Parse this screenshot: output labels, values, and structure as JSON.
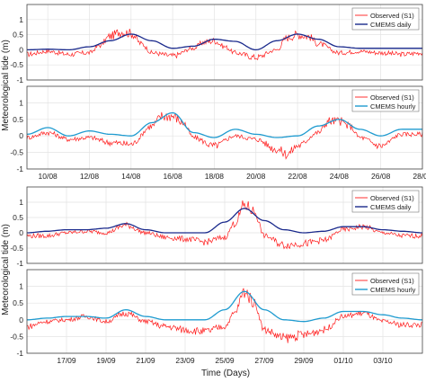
{
  "figure": {
    "ylabel_top": "Meteorological tide (m)",
    "ylabel_bottom": "Meteorological tide (m)",
    "xlabel_bottom": "Time (Days)"
  },
  "colors": {
    "observed": "#ff1a1a",
    "daily": "#1a2a8c",
    "hourly": "#1f9bd0",
    "axis": "#444444"
  },
  "chart_data": [
    {
      "type": "line",
      "panel": "A",
      "ylim": [
        -1,
        1.5
      ],
      "yticks": [
        -1,
        -0.5,
        0,
        0.5,
        1
      ],
      "ytick_labels": [
        "-1",
        "-0.5",
        "0",
        "0.5",
        "1"
      ],
      "x_range_days": [
        "2021-08-09",
        "2021-08-28"
      ],
      "xticks": [],
      "xtick_labels": [],
      "grid": true,
      "legend_position": "top-right",
      "series": [
        {
          "name": "Observed (S1)",
          "style": "observed",
          "x": [
            "08-09",
            "08-10",
            "08-11",
            "08-12",
            "08-12.5",
            "08-13",
            "08-13.5",
            "08-14",
            "08-14.5",
            "08-15",
            "08-16",
            "08-17",
            "08-17.5",
            "08-18",
            "08-18.5",
            "08-19",
            "08-20",
            "08-21",
            "08-21.5",
            "08-22",
            "08-22.5",
            "08-23",
            "08-24",
            "08-25",
            "08-26",
            "08-27",
            "08-28"
          ],
          "y": [
            -0.15,
            -0.05,
            -0.15,
            -0.1,
            0.15,
            0.45,
            0.6,
            0.55,
            0.2,
            -0.1,
            -0.2,
            0.05,
            0.25,
            0.3,
            0.1,
            -0.1,
            -0.25,
            0.0,
            0.4,
            0.5,
            0.45,
            0.2,
            -0.1,
            -0.05,
            -0.1,
            -0.15,
            -0.1
          ]
        },
        {
          "name": "CMEMS daily",
          "style": "daily",
          "x": [
            "08-09",
            "08-10",
            "08-11",
            "08-12",
            "08-13",
            "08-14",
            "08-15",
            "08-16",
            "08-17",
            "08-18",
            "08-19",
            "08-20",
            "08-21",
            "08-22",
            "08-23",
            "08-24",
            "08-25",
            "08-26",
            "08-27",
            "08-28"
          ],
          "y": [
            0.0,
            0.02,
            0.0,
            0.1,
            0.3,
            0.52,
            0.3,
            0.05,
            0.12,
            0.35,
            0.28,
            0.0,
            0.3,
            0.52,
            0.35,
            0.1,
            0.05,
            0.05,
            0.05,
            0.05
          ]
        }
      ]
    },
    {
      "type": "line",
      "panel": "B",
      "ylim": [
        -1,
        1.5
      ],
      "yticks": [
        -1,
        -0.5,
        0,
        0.5,
        1
      ],
      "ytick_labels": [
        "-1",
        "-0.5",
        "0",
        "0.5",
        "1"
      ],
      "x_range_days": [
        "2021-08-09",
        "2021-08-28"
      ],
      "xticks": [
        "2021-08-10",
        "2021-08-12",
        "2021-08-14",
        "2021-08-16",
        "2021-08-18",
        "2021-08-20",
        "2021-08-22",
        "2021-08-24",
        "2021-08-26",
        "2021-08-28"
      ],
      "xtick_labels": [
        "10/08",
        "12/08",
        "14/08",
        "16/08",
        "18/08",
        "20/08",
        "22/08",
        "24/08",
        "26/08",
        "28/08"
      ],
      "grid": true,
      "legend_position": "top-right",
      "series": [
        {
          "name": "Observed (S1)",
          "style": "observed",
          "x": [
            "08-09",
            "08-10",
            "08-11",
            "08-12",
            "08-13",
            "08-14",
            "08-15",
            "08-15.5",
            "08-16",
            "08-16.5",
            "08-17",
            "08-18",
            "08-19",
            "08-20",
            "08-21",
            "08-21.5",
            "08-22",
            "08-23",
            "08-23.5",
            "08-24",
            "08-24.5",
            "08-25",
            "08-26",
            "08-27",
            "08-28"
          ],
          "y": [
            -0.05,
            0.1,
            -0.1,
            -0.05,
            -0.2,
            -0.25,
            0.3,
            0.6,
            0.6,
            0.4,
            -0.05,
            -0.3,
            0.0,
            -0.1,
            -0.4,
            -0.55,
            -0.3,
            0.1,
            0.45,
            0.45,
            0.3,
            -0.05,
            -0.3,
            0.05,
            0.05
          ]
        },
        {
          "name": "CMEMS hourly",
          "style": "hourly",
          "x": [
            "08-09",
            "08-10",
            "08-11",
            "08-12",
            "08-13",
            "08-14",
            "08-15",
            "08-16",
            "08-17",
            "08-18",
            "08-19",
            "08-20",
            "08-21",
            "08-22",
            "08-23",
            "08-24",
            "08-25",
            "08-26",
            "08-27",
            "08-28"
          ],
          "y": [
            0.05,
            0.25,
            0.0,
            0.15,
            0.05,
            0.0,
            0.4,
            0.7,
            0.1,
            -0.05,
            0.2,
            0.05,
            -0.05,
            0.0,
            0.3,
            0.5,
            0.2,
            0.0,
            0.2,
            0.2
          ]
        }
      ]
    },
    {
      "type": "line",
      "panel": "C",
      "ylim": [
        -1,
        1.5
      ],
      "yticks": [
        -1,
        -0.5,
        0,
        0.5,
        1
      ],
      "ytick_labels": [
        "-1",
        "-0.5",
        "0",
        "0.5",
        "1"
      ],
      "x_range_days": [
        "2021-09-15",
        "2021-10-05"
      ],
      "xticks": [],
      "xtick_labels": [],
      "grid": true,
      "legend_position": "top-right",
      "series": [
        {
          "name": "Observed (S1)",
          "style": "observed",
          "x": [
            "09-15",
            "09-16",
            "09-17",
            "09-18",
            "09-19",
            "09-20",
            "09-21",
            "09-22",
            "09-23",
            "09-24",
            "09-25",
            "09-25.5",
            "09-26",
            "09-26.5",
            "09-27",
            "09-28",
            "09-29",
            "09-30",
            "10-01",
            "10-02",
            "10-03",
            "10-04",
            "10-05"
          ],
          "y": [
            -0.1,
            -0.1,
            0.0,
            0.05,
            0.0,
            0.25,
            0.0,
            -0.15,
            -0.2,
            -0.3,
            -0.15,
            0.3,
            0.9,
            0.7,
            -0.1,
            -0.4,
            -0.35,
            -0.25,
            0.1,
            0.2,
            0.0,
            -0.1,
            -0.1
          ]
        },
        {
          "name": "CMEMS daily",
          "style": "daily",
          "x": [
            "09-15",
            "09-16",
            "09-17",
            "09-18",
            "09-19",
            "09-20",
            "09-21",
            "09-22",
            "09-23",
            "09-24",
            "09-25",
            "09-26",
            "09-27",
            "09-28",
            "09-29",
            "09-30",
            "10-01",
            "10-02",
            "10-03",
            "10-04",
            "10-05"
          ],
          "y": [
            0.0,
            0.05,
            0.1,
            0.1,
            0.15,
            0.3,
            0.1,
            0.0,
            0.0,
            0.0,
            0.35,
            0.8,
            0.4,
            0.1,
            0.0,
            0.05,
            0.2,
            0.2,
            0.1,
            0.05,
            0.0
          ]
        }
      ]
    },
    {
      "type": "line",
      "panel": "D",
      "ylim": [
        -1,
        1.5
      ],
      "yticks": [
        -1,
        -0.5,
        0,
        0.5,
        1
      ],
      "ytick_labels": [
        "-1",
        "-0.5",
        "0",
        "0.5",
        "1"
      ],
      "x_range_days": [
        "2021-09-15",
        "2021-10-05"
      ],
      "xticks": [
        "2021-09-17",
        "2021-09-19",
        "2021-09-21",
        "2021-09-23",
        "2021-09-25",
        "2021-09-27",
        "2021-09-29",
        "2021-10-01",
        "2021-10-03"
      ],
      "xtick_labels": [
        "17/09",
        "19/09",
        "21/09",
        "23/09",
        "25/09",
        "27/09",
        "29/09",
        "01/10",
        "03/10"
      ],
      "grid": true,
      "legend_position": "top-right",
      "series": [
        {
          "name": "Observed (S1)",
          "style": "observed",
          "x": [
            "09-15",
            "09-16",
            "09-17",
            "09-18",
            "09-19",
            "09-20",
            "09-21",
            "09-22",
            "09-23",
            "09-24",
            "09-25",
            "09-25.5",
            "09-26",
            "09-26.5",
            "09-27",
            "09-28",
            "09-29",
            "09-30",
            "10-01",
            "10-02",
            "10-03",
            "10-04",
            "10-05"
          ],
          "y": [
            -0.2,
            -0.05,
            0.0,
            0.1,
            -0.05,
            0.2,
            -0.05,
            -0.2,
            -0.3,
            -0.35,
            -0.2,
            0.2,
            0.85,
            0.5,
            -0.3,
            -0.55,
            -0.45,
            -0.3,
            0.1,
            0.2,
            -0.05,
            -0.15,
            -0.15
          ]
        },
        {
          "name": "CMEMS hourly",
          "style": "hourly",
          "x": [
            "09-15",
            "09-16",
            "09-17",
            "09-18",
            "09-19",
            "09-20",
            "09-21",
            "09-22",
            "09-23",
            "09-24",
            "09-25",
            "09-26",
            "09-27",
            "09-28",
            "09-29",
            "09-30",
            "10-01",
            "10-02",
            "10-03",
            "10-04",
            "10-05"
          ],
          "y": [
            0.0,
            0.05,
            0.1,
            0.1,
            0.05,
            0.3,
            0.1,
            0.0,
            0.0,
            0.0,
            0.3,
            0.85,
            0.3,
            0.0,
            -0.05,
            0.05,
            0.25,
            0.25,
            0.15,
            0.05,
            0.0
          ]
        }
      ]
    }
  ]
}
